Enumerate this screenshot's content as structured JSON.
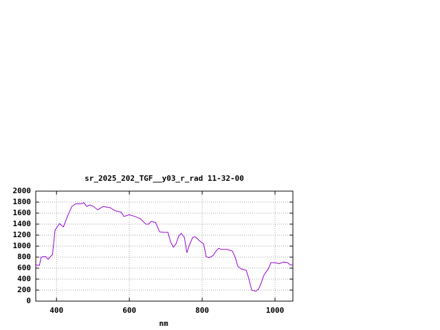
{
  "chart_data": {
    "type": "line",
    "title": "sr_2025_202_TGF__y03_r_rad 11-32-00",
    "x_label": "nm",
    "x": [
      343,
      353,
      358,
      370,
      377,
      389,
      396,
      408,
      419,
      430,
      442,
      453,
      468,
      475,
      483,
      491,
      502,
      513,
      528,
      547,
      562,
      577,
      585,
      600,
      615,
      630,
      645,
      653,
      660,
      672,
      683,
      694,
      706,
      713,
      721,
      728,
      736,
      743,
      751,
      758,
      766,
      774,
      781,
      792,
      804,
      811,
      819,
      830,
      838,
      845,
      853,
      868,
      883,
      891,
      898,
      909,
      921,
      928,
      936,
      947,
      955,
      962,
      970,
      981,
      989,
      1000,
      1011,
      1023,
      1034,
      1042,
      1049
    ],
    "series": [
      {
        "color": "#9400d3",
        "values": [
          660,
          650,
          800,
          810,
          760,
          850,
          1290,
          1410,
          1350,
          1540,
          1720,
          1770,
          1770,
          1790,
          1720,
          1750,
          1720,
          1660,
          1720,
          1700,
          1640,
          1620,
          1540,
          1570,
          1540,
          1500,
          1400,
          1400,
          1450,
          1430,
          1260,
          1250,
          1250,
          1080,
          980,
          1040,
          1190,
          1230,
          1160,
          880,
          1040,
          1160,
          1170,
          1100,
          1040,
          810,
          790,
          830,
          910,
          960,
          940,
          940,
          910,
          790,
          630,
          580,
          560,
          410,
          200,
          180,
          220,
          330,
          480,
          580,
          700,
          700,
          680,
          710,
          700,
          660,
          660
        ]
      }
    ],
    "xlim": [
      343,
      1049
    ],
    "ylim": [
      0,
      2000
    ],
    "xticks": [
      400,
      600,
      800,
      1000
    ],
    "yticks": [
      0,
      200,
      400,
      600,
      800,
      1000,
      1200,
      1400,
      1600,
      1800,
      2000
    ],
    "grid": true
  }
}
